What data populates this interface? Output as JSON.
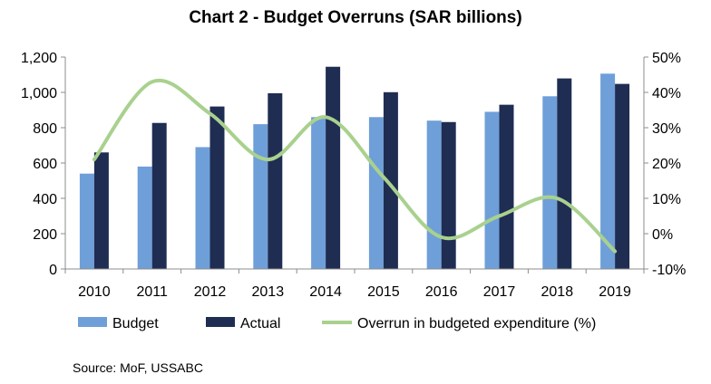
{
  "chart_data": {
    "type": "bar",
    "title": "Chart 2 - Budget Overruns (SAR billions)",
    "categories": [
      "2010",
      "2011",
      "2012",
      "2013",
      "2014",
      "2015",
      "2016",
      "2017",
      "2018",
      "2019"
    ],
    "series": [
      {
        "name": "Budget",
        "type": "bar",
        "color": "#6f9fd8",
        "values": [
          540,
          580,
          690,
          820,
          860,
          860,
          840,
          890,
          978,
          1106
        ]
      },
      {
        "name": "Actual",
        "type": "bar",
        "color": "#1f2d52",
        "values": [
          660,
          827,
          920,
          995,
          1145,
          1001,
          832,
          930,
          1079,
          1048
        ]
      },
      {
        "name": "Overrun in budgeted expenditure (%)",
        "type": "line",
        "axis": "right",
        "color": "#a9d18e",
        "values": [
          21,
          43,
          34,
          21,
          33,
          16,
          -1,
          5,
          10,
          -5
        ]
      }
    ],
    "y_left": {
      "min": 0,
      "max": 1200,
      "ticks": [
        0,
        200,
        400,
        600,
        800,
        1000,
        1200
      ],
      "tick_labels": [
        "0",
        "200",
        "400",
        "600",
        "800",
        "1,000",
        "1,200"
      ]
    },
    "y_right": {
      "min": -10,
      "max": 50,
      "ticks": [
        -10,
        0,
        10,
        20,
        30,
        40,
        50
      ],
      "tick_labels": [
        "-10%",
        "0%",
        "10%",
        "20%",
        "30%",
        "40%",
        "50%"
      ]
    },
    "xlabel": "",
    "ylabel": "",
    "grid": false,
    "legend_position": "bottom",
    "source": "Source: MoF, USSABC"
  }
}
